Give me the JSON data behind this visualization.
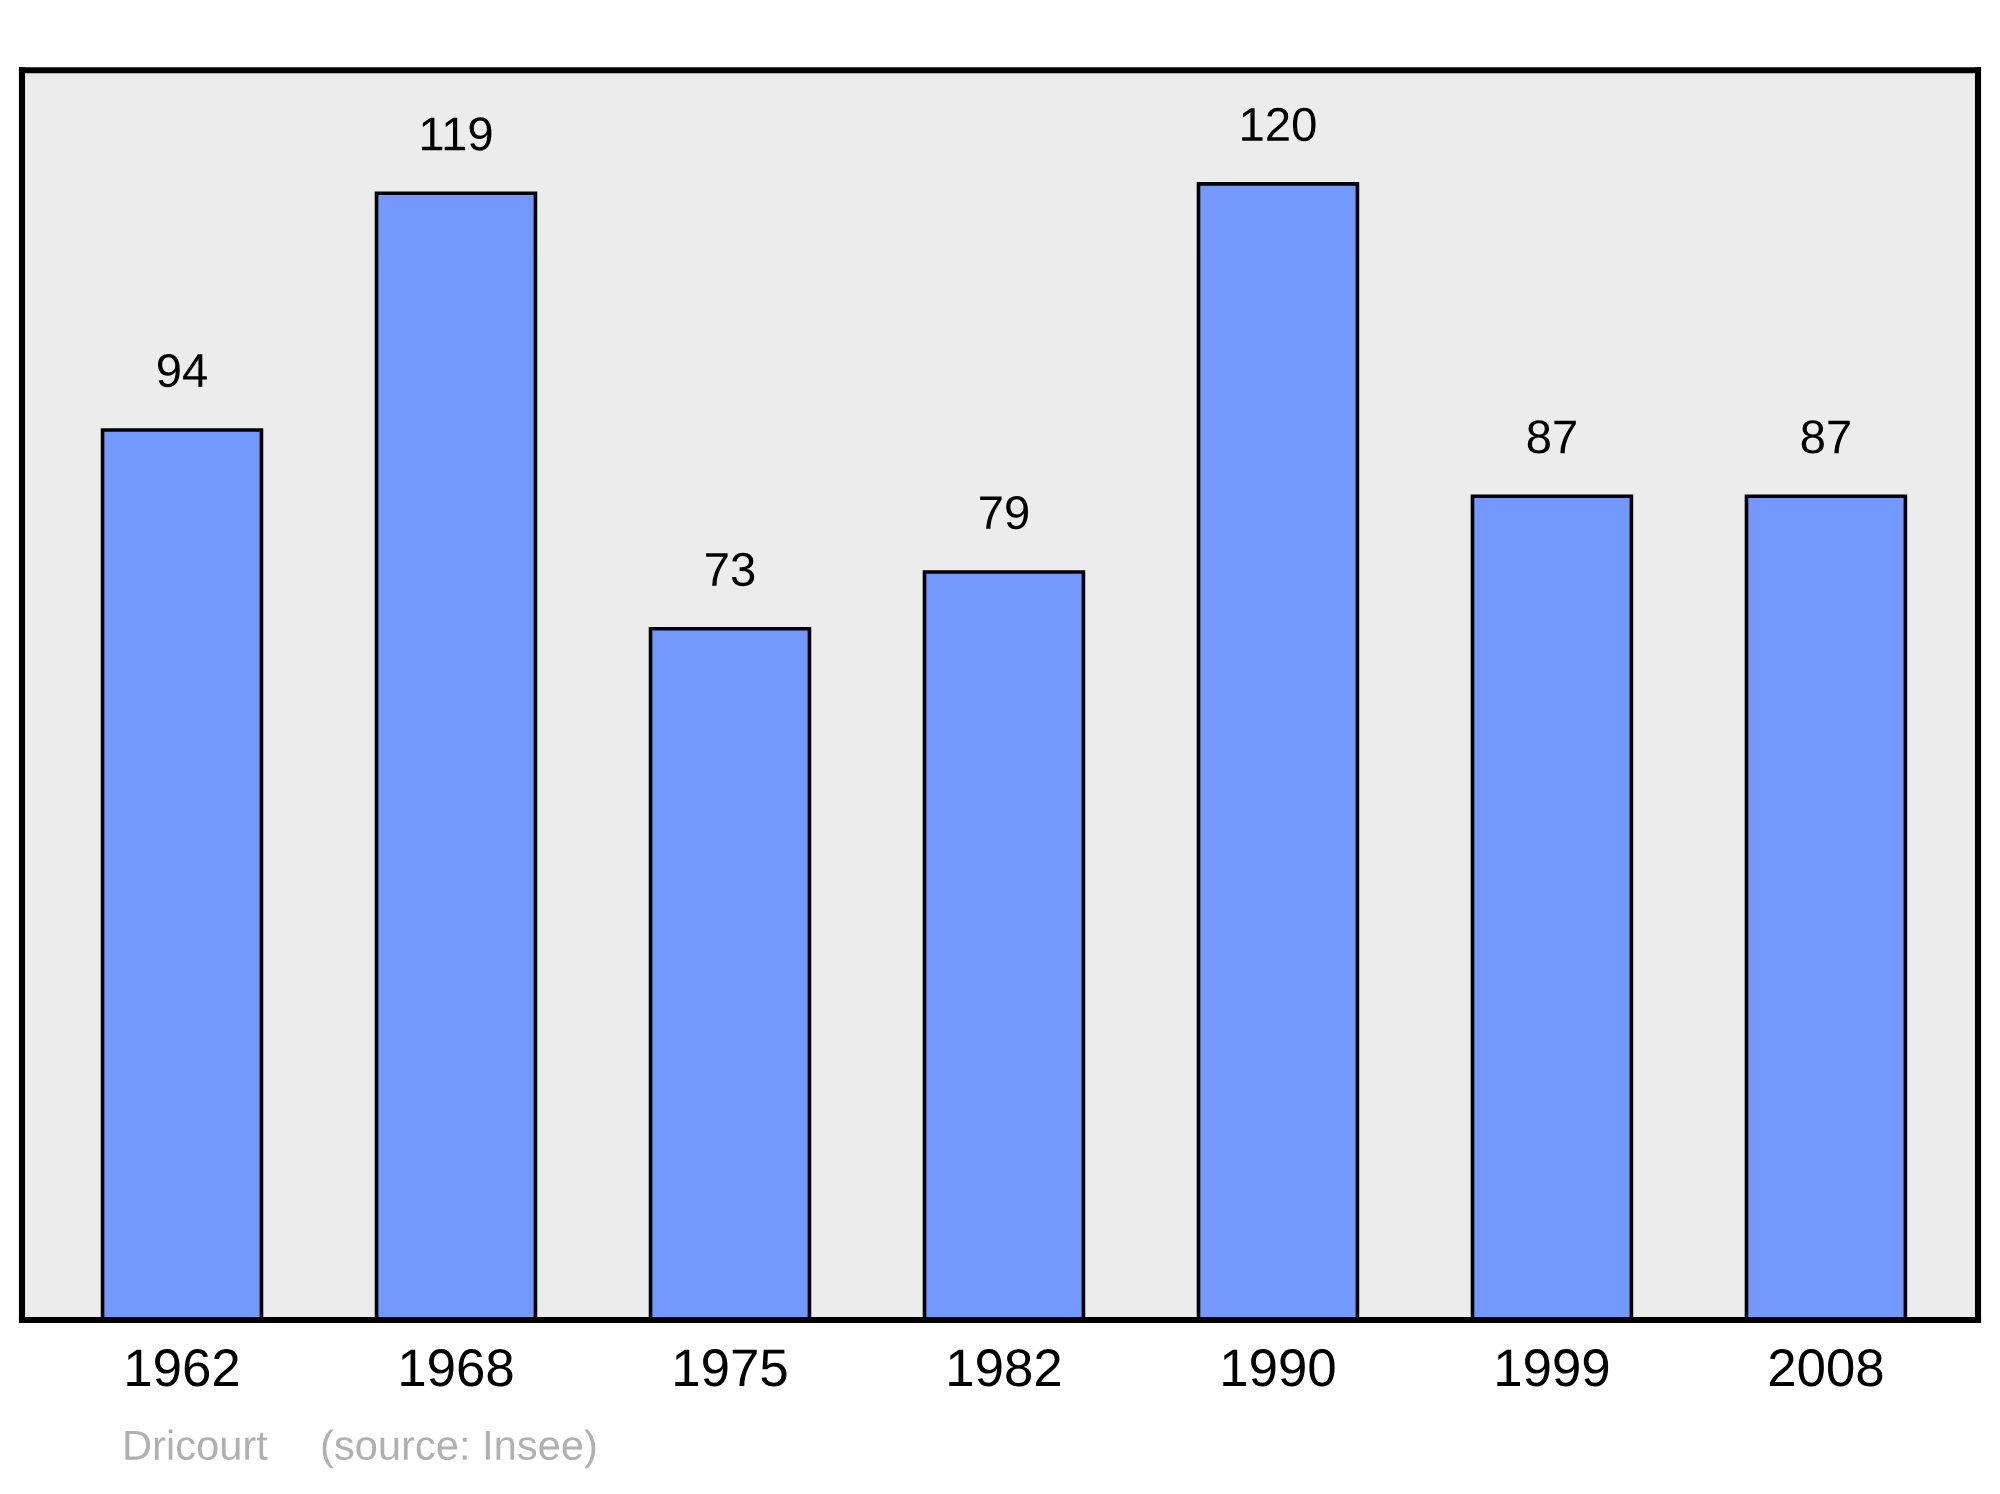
{
  "chart_data": {
    "type": "bar",
    "categories": [
      "1962",
      "1968",
      "1975",
      "1982",
      "1990",
      "1999",
      "2008"
    ],
    "values": [
      94,
      119,
      73,
      79,
      120,
      87,
      87
    ],
    "color": "#7399ff",
    "ylim": [
      0,
      132
    ],
    "data_labels": true,
    "grid": false,
    "legend": false,
    "annotations": [
      "Dricourt",
      "(source: Insee)"
    ]
  }
}
